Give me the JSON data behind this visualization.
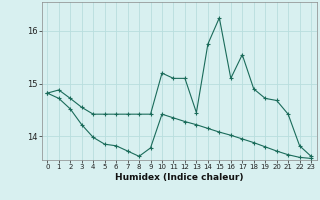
{
  "title": "",
  "xlabel": "Humidex (Indice chaleur)",
  "ylabel": "",
  "background_color": "#d8f0f0",
  "grid_color": "#b8dede",
  "line_color": "#1a6b5a",
  "marker_color": "#1a6b5a",
  "xlim": [
    -0.5,
    23.5
  ],
  "ylim": [
    13.55,
    16.55
  ],
  "yticks": [
    14,
    15,
    16
  ],
  "xticks": [
    0,
    1,
    2,
    3,
    4,
    5,
    6,
    7,
    8,
    9,
    10,
    11,
    12,
    13,
    14,
    15,
    16,
    17,
    18,
    19,
    20,
    21,
    22,
    23
  ],
  "series1_x": [
    0,
    1,
    2,
    3,
    4,
    5,
    6,
    7,
    8,
    9,
    10,
    11,
    12,
    13,
    14,
    15,
    16,
    17,
    18,
    19,
    20,
    21,
    22,
    23
  ],
  "series1_y": [
    14.82,
    14.88,
    14.72,
    14.55,
    14.42,
    14.42,
    14.42,
    14.42,
    14.42,
    14.42,
    15.2,
    15.1,
    15.1,
    14.45,
    15.75,
    16.25,
    15.1,
    15.55,
    14.9,
    14.72,
    14.68,
    14.42,
    13.82,
    13.62
  ],
  "series2_x": [
    0,
    1,
    2,
    3,
    4,
    5,
    6,
    7,
    8,
    9,
    10,
    11,
    12,
    13,
    14,
    15,
    16,
    17,
    18,
    19,
    20,
    21,
    22,
    23
  ],
  "series2_y": [
    14.82,
    14.72,
    14.52,
    14.22,
    13.98,
    13.85,
    13.82,
    13.72,
    13.62,
    13.78,
    14.42,
    14.35,
    14.28,
    14.22,
    14.15,
    14.08,
    14.02,
    13.95,
    13.88,
    13.8,
    13.72,
    13.65,
    13.6,
    13.58
  ]
}
